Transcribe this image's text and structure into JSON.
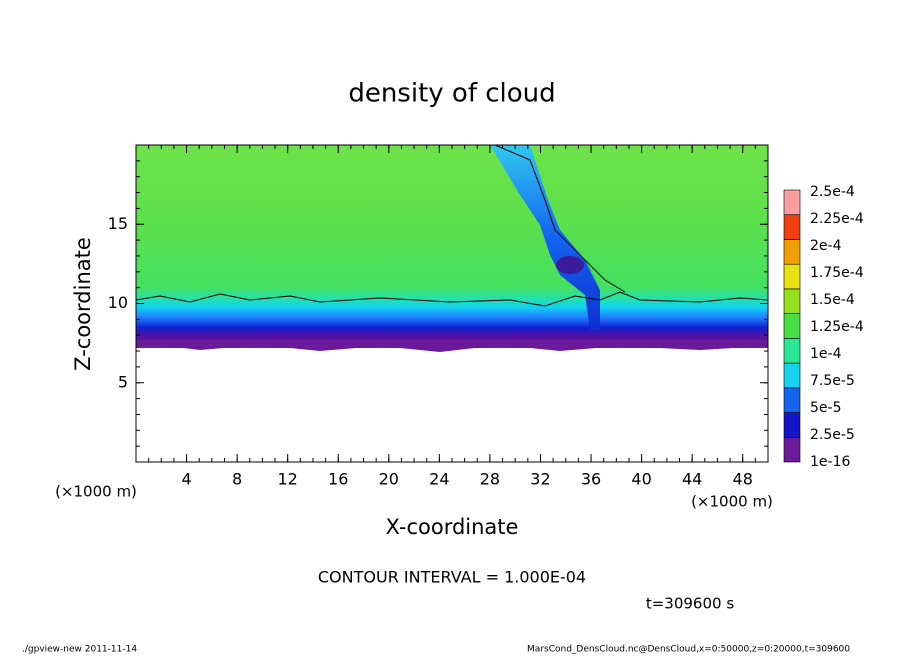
{
  "chart_data": {
    "type": "contour",
    "title": "density of cloud",
    "x_label": "X-coordinate",
    "y_label": "Z-coordinate",
    "x_unit": "(×1000 m)",
    "x_unit_right": "(×1000 m)",
    "xlim": [
      0,
      50
    ],
    "xticks": [
      4,
      8,
      12,
      16,
      20,
      24,
      28,
      32,
      36,
      40,
      44,
      48
    ],
    "ylim": [
      0,
      20
    ],
    "yticks": [
      5,
      10,
      15
    ],
    "colorbar": {
      "levels": [
        {
          "value": 1e-16,
          "label": "1e-16"
        },
        {
          "value": 2.5e-05,
          "label": "2.5e-5"
        },
        {
          "value": 5e-05,
          "label": "5e-5"
        },
        {
          "value": 7.5e-05,
          "label": "7.5e-5"
        },
        {
          "value": 0.0001,
          "label": "1e-4"
        },
        {
          "value": 0.000125,
          "label": "1.25e-4"
        },
        {
          "value": 0.00015,
          "label": "1.5e-4"
        },
        {
          "value": 0.000175,
          "label": "1.75e-4"
        },
        {
          "value": 0.0002,
          "label": "2e-4"
        },
        {
          "value": 0.000225,
          "label": "2.25e-4"
        },
        {
          "value": 0.00025,
          "label": "2.5e-4"
        }
      ],
      "colors": [
        "#6a1a9a",
        "#1414c8",
        "#1464f0",
        "#14d2f0",
        "#28e896",
        "#46e046",
        "#96e01e",
        "#e8e010",
        "#f0a000",
        "#f04010",
        "#f8a0a0"
      ]
    },
    "contour_interval": "CONTOUR INTERVAL = 1.000E-04",
    "time_label": "t=309600 s",
    "footer_left": "./gpview-new  2011-11-14",
    "footer_right": "MarsCond_DensCloud.nc@DensCloud,x=0:50000,z=0:20000,t=309600"
  }
}
